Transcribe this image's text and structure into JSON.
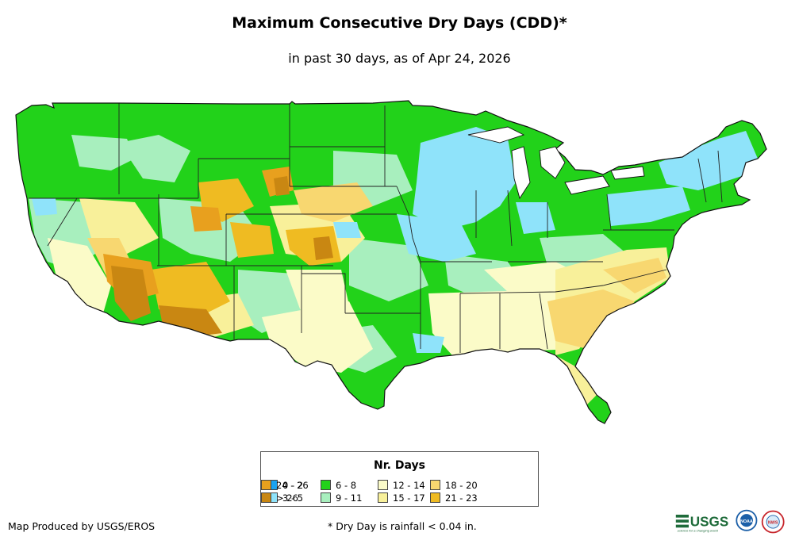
{
  "title": "Maximum Consecutive Dry Days (CDD)*",
  "subtitle": "in past 30 days, as of Apr 24, 2026",
  "legend": {
    "title": "Nr. Days",
    "classes": [
      {
        "label": "0 - 2",
        "color": "#1aa3f0"
      },
      {
        "label": "3 - 5",
        "color": "#8fe3fa"
      },
      {
        "label": "6 - 8",
        "color": "#22d21a"
      },
      {
        "label": "9 - 11",
        "color": "#a8efbe"
      },
      {
        "label": "12 - 14",
        "color": "#fbfbc8"
      },
      {
        "label": "15 - 17",
        "color": "#f8f09a"
      },
      {
        "label": "18 - 20",
        "color": "#f8d770"
      },
      {
        "label": "21 - 23",
        "color": "#efbb22"
      },
      {
        "label": "24 - 26",
        "color": "#e8a01e"
      },
      {
        "label": "> 26",
        "color": "#c98712"
      }
    ]
  },
  "footer": {
    "produced_by": "Map Produced by USGS/EROS",
    "note": "* Dry Day is rainfall < 0.04 in."
  },
  "logos": {
    "usgs": {
      "text": "USGS",
      "tagline": "science for a changing world",
      "color": "#1e6b3a"
    },
    "noaa": {
      "text": "NOAA",
      "color": "#1b5fa8"
    },
    "nws": {
      "text": "NWS",
      "color": "#c7252b"
    }
  }
}
